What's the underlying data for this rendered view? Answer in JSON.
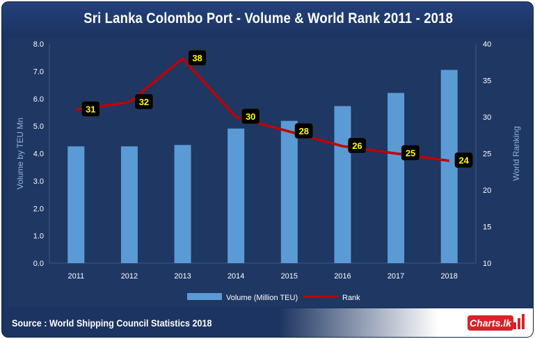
{
  "header": {
    "title": "Sri Lanka Colombo Port - Volume & World Rank 2011 - 2018"
  },
  "footer": {
    "source": "Source : World Shipping Council Statistics 2018",
    "logo_text": "Charts.lk"
  },
  "colors": {
    "bar": "#5b9bd5",
    "line": "#c00000",
    "label_bg": "#000000",
    "label_text": "#ffff00"
  },
  "chart_data": {
    "type": "bar",
    "categories": [
      "2011",
      "2012",
      "2013",
      "2014",
      "2015",
      "2016",
      "2017",
      "2018"
    ],
    "series": [
      {
        "name": "Volume (Million TEU)",
        "type": "bar",
        "axis": "left",
        "values": [
          4.26,
          4.26,
          4.31,
          4.91,
          5.19,
          5.73,
          6.21,
          7.05
        ]
      },
      {
        "name": "Rank",
        "type": "line",
        "axis": "right",
        "values": [
          31,
          32,
          38,
          30,
          28,
          26,
          25,
          24
        ]
      }
    ],
    "ylabel": "Volume by TEU Mn",
    "y2label": "World Ranking",
    "ylim": [
      0,
      8
    ],
    "y2lim": [
      10,
      40
    ],
    "yticks": [
      "0.0",
      "1.0",
      "2.0",
      "3.0",
      "4.0",
      "5.0",
      "6.0",
      "7.0",
      "8.0"
    ],
    "y2ticks": [
      "10",
      "15",
      "20",
      "25",
      "30",
      "35",
      "40"
    ],
    "grid": false,
    "legend": "bottom"
  }
}
